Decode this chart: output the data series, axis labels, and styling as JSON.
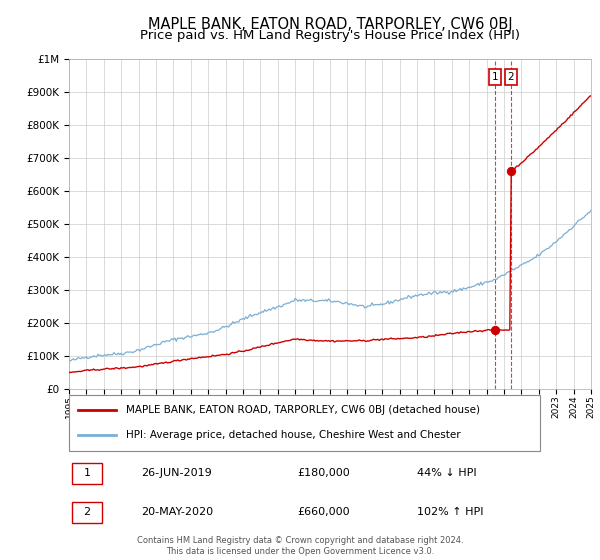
{
  "title": "MAPLE BANK, EATON ROAD, TARPORLEY, CW6 0BJ",
  "subtitle": "Price paid vs. HM Land Registry's House Price Index (HPI)",
  "ylim": [
    0,
    1000000
  ],
  "xlim_start": 1995,
  "xlim_end": 2025,
  "bg_color": "#ffffff",
  "grid_color": "#cccccc",
  "hpi_color": "#7bafd4",
  "price_color": "#cc0000",
  "transaction1_date": 2019.49,
  "transaction1_price": 180000,
  "transaction2_date": 2020.38,
  "transaction2_price": 660000,
  "legend1": "MAPLE BANK, EATON ROAD, TARPORLEY, CW6 0BJ (detached house)",
  "legend2": "HPI: Average price, detached house, Cheshire West and Chester",
  "table_row1": [
    "1",
    "26-JUN-2019",
    "£180,000",
    "44% ↓ HPI"
  ],
  "table_row2": [
    "2",
    "20-MAY-2020",
    "£660,000",
    "102% ↑ HPI"
  ],
  "footer1": "Contains HM Land Registry data © Crown copyright and database right 2024.",
  "footer2": "This data is licensed under the Open Government Licence v3.0.",
  "title_fontsize": 10.5,
  "subtitle_fontsize": 9.5
}
